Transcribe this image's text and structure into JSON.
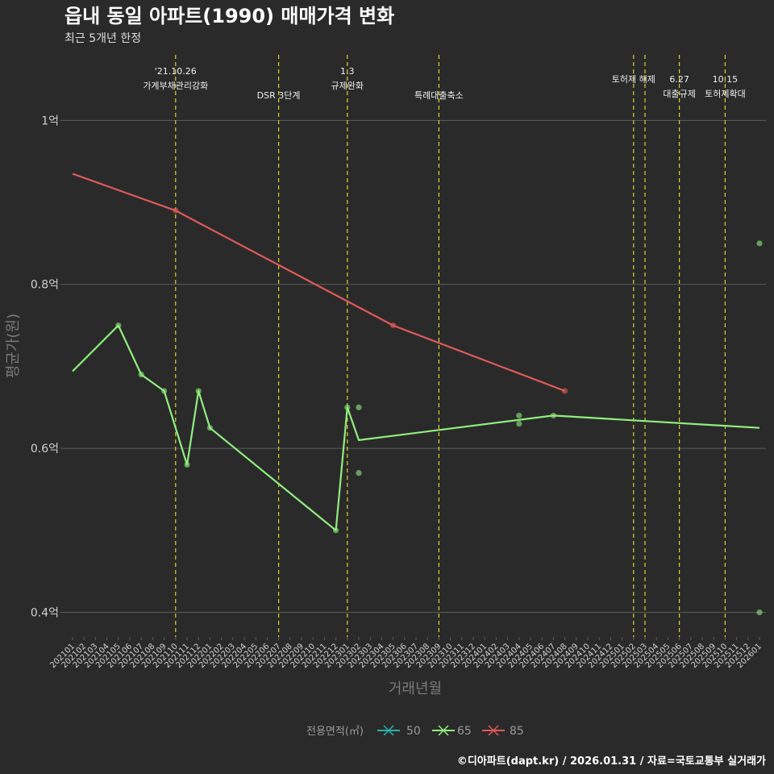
{
  "chart_data": {
    "type": "line",
    "title": "읍내 동일 아파트(1990) 매매가격 변화",
    "subtitle": "최근 5개년 한정",
    "xlabel": "거래년월",
    "ylabel": "평균가(원)",
    "ylim": [
      0.37,
      1.08
    ],
    "y_ticks": [
      {
        "value": 0.4,
        "label": "0.4억"
      },
      {
        "value": 0.6,
        "label": "0.6억"
      },
      {
        "value": 0.8,
        "label": "0.8억"
      },
      {
        "value": 1.0,
        "label": "1억"
      }
    ],
    "x_categories": [
      "202101",
      "202102",
      "202103",
      "202104",
      "202105",
      "202106",
      "202107",
      "202108",
      "202109",
      "202110",
      "202111",
      "202112",
      "202201",
      "202202",
      "202203",
      "202204",
      "202205",
      "202206",
      "202207",
      "202208",
      "202209",
      "202210",
      "202211",
      "202212",
      "202301",
      "202302",
      "202303",
      "202304",
      "202305",
      "202306",
      "202307",
      "202308",
      "202309",
      "202310",
      "202311",
      "202312",
      "202401",
      "202402",
      "202403",
      "202404",
      "202405",
      "202406",
      "202407",
      "202408",
      "202409",
      "202410",
      "202411",
      "202412",
      "202501",
      "202502",
      "202503",
      "202504",
      "202505",
      "202506",
      "202507",
      "202508",
      "202509",
      "202510",
      "202511",
      "202512",
      "202601"
    ],
    "series": [
      {
        "name": "65",
        "color": "#90ee7e",
        "line": [
          {
            "x": "202101",
            "y": 0.694
          },
          {
            "x": "202105",
            "y": 0.75
          },
          {
            "x": "202107",
            "y": 0.69
          },
          {
            "x": "202109",
            "y": 0.67
          },
          {
            "x": "202111",
            "y": 0.58
          },
          {
            "x": "202112",
            "y": 0.67
          },
          {
            "x": "202201",
            "y": 0.625
          },
          {
            "x": "202212",
            "y": 0.5
          },
          {
            "x": "202301",
            "y": 0.65
          },
          {
            "x": "202302",
            "y": 0.61
          },
          {
            "x": "202407",
            "y": 0.64
          },
          {
            "x": "202601",
            "y": 0.625
          }
        ],
        "points": [
          {
            "x": "202105",
            "y": 0.75
          },
          {
            "x": "202107",
            "y": 0.69
          },
          {
            "x": "202109",
            "y": 0.67
          },
          {
            "x": "202111",
            "y": 0.58
          },
          {
            "x": "202112",
            "y": 0.67
          },
          {
            "x": "202201",
            "y": 0.625
          },
          {
            "x": "202212",
            "y": 0.5
          },
          {
            "x": "202301",
            "y": 0.65
          },
          {
            "x": "202302",
            "y": 0.65
          },
          {
            "x": "202302",
            "y": 0.57
          },
          {
            "x": "202404",
            "y": 0.64
          },
          {
            "x": "202404",
            "y": 0.63
          },
          {
            "x": "202407",
            "y": 0.64
          },
          {
            "x": "202601",
            "y": 0.85
          },
          {
            "x": "202601",
            "y": 0.4
          }
        ]
      },
      {
        "name": "85",
        "color": "#e05a5a",
        "line": [
          {
            "x": "202101",
            "y": 0.935
          },
          {
            "x": "202110",
            "y": 0.89
          },
          {
            "x": "202305",
            "y": 0.75
          },
          {
            "x": "202408",
            "y": 0.67
          }
        ],
        "points": [
          {
            "x": "202110",
            "y": 0.89
          },
          {
            "x": "202305",
            "y": 0.75
          },
          {
            "x": "202408",
            "y": 0.67
          }
        ]
      }
    ],
    "events": [
      {
        "x": "202110",
        "lines": [
          "'21.10.26",
          "가계부채관리강화"
        ],
        "level": 0
      },
      {
        "x": "202207",
        "lines": [
          "DSR 3단계"
        ],
        "level": 2
      },
      {
        "x": "202301",
        "lines": [
          "1.3",
          "규제완화"
        ],
        "level": 0
      },
      {
        "x": "202309",
        "lines": [
          "특례대출축소"
        ],
        "level": 2
      },
      {
        "x": "202502",
        "lines": [
          "토허제 해제"
        ],
        "level": 1
      },
      {
        "x": "202503",
        "lines": [],
        "level": 1
      },
      {
        "x": "202506",
        "lines": [
          "6.27",
          "대출규제"
        ],
        "level": 1
      },
      {
        "x": "202510",
        "lines": [
          "10.15",
          "토허제확대"
        ],
        "level": 1
      }
    ],
    "legend": {
      "title": "전용면적(㎡)",
      "items": [
        {
          "label": "50",
          "color": "#2ab0a8"
        },
        {
          "label": "65",
          "color": "#90ee7e"
        },
        {
          "label": "85",
          "color": "#e05a5a"
        }
      ],
      "position": "bottom"
    },
    "caption": "©디아파트(dapt.kr) / 2026.01.31 / 자료=국토교통부 실거래가"
  }
}
